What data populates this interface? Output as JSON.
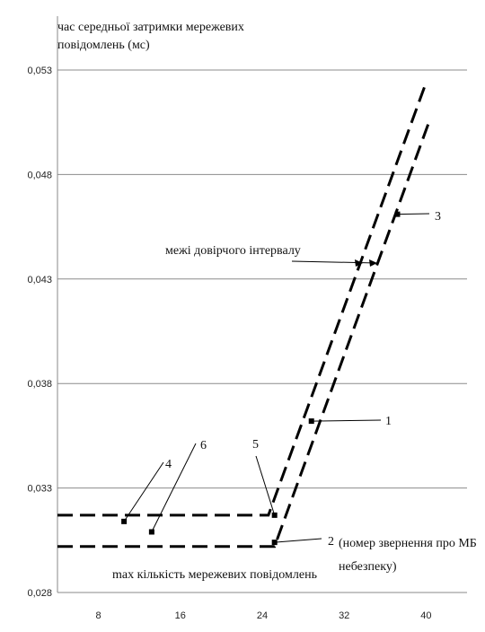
{
  "chart_data": {
    "type": "line",
    "ylabel_lines": [
      "час середньої затримки мережевих",
      "повідомлень (мс)"
    ],
    "xlabel": "max кількість мережевих повідомлень",
    "x_ticks": [
      8,
      16,
      24,
      32,
      40
    ],
    "y_ticks": [
      "0,028",
      "0,033",
      "0,038",
      "0,043",
      "0,048",
      "0,053"
    ],
    "xlim": [
      4,
      44
    ],
    "ylim": [
      0.028,
      0.053
    ],
    "grid": "horizontal",
    "series": [
      {
        "x": [
          4,
          24.6,
          40
        ],
        "y": [
          0.0317,
          0.0317,
          0.0524
        ]
      },
      {
        "x": [
          4,
          25.2,
          40.2
        ],
        "y": [
          0.0302,
          0.0302,
          0.0504
        ]
      }
    ],
    "annotations": [
      {
        "id": "1",
        "text": "1",
        "x": 28.8,
        "y": 0.0362
      },
      {
        "id": "2",
        "text": "2",
        "x": 25.2,
        "y": 0.0304
      },
      {
        "id": "3",
        "text": "3",
        "x": 37.2,
        "y": 0.0461
      },
      {
        "id": "4",
        "text": "4",
        "x": 10.5,
        "y": 0.0314
      },
      {
        "id": "5",
        "text": "5",
        "x": 25.2,
        "y": 0.0317
      },
      {
        "id": "6",
        "text": "6",
        "x": 13.2,
        "y": 0.0309
      }
    ],
    "label_2_extra": [
      "(номер звернення про МБ",
      "небезпеку)"
    ],
    "confidence_label": "межі довірчого інтервалу"
  }
}
